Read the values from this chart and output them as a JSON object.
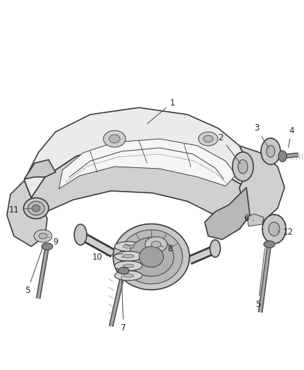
{
  "bg_color": "#ffffff",
  "lc": "#3a3a3a",
  "fc_frame": "#e2e2e2",
  "fc_frame2": "#d0d0d0",
  "fc_dark": "#b8b8b8",
  "fc_mid": "#c8c8c8",
  "fc_light": "#ebebeb",
  "fig_width": 4.38,
  "fig_height": 5.33,
  "dpi": 100,
  "annotation_color": "#222222",
  "font_size": 8.5
}
